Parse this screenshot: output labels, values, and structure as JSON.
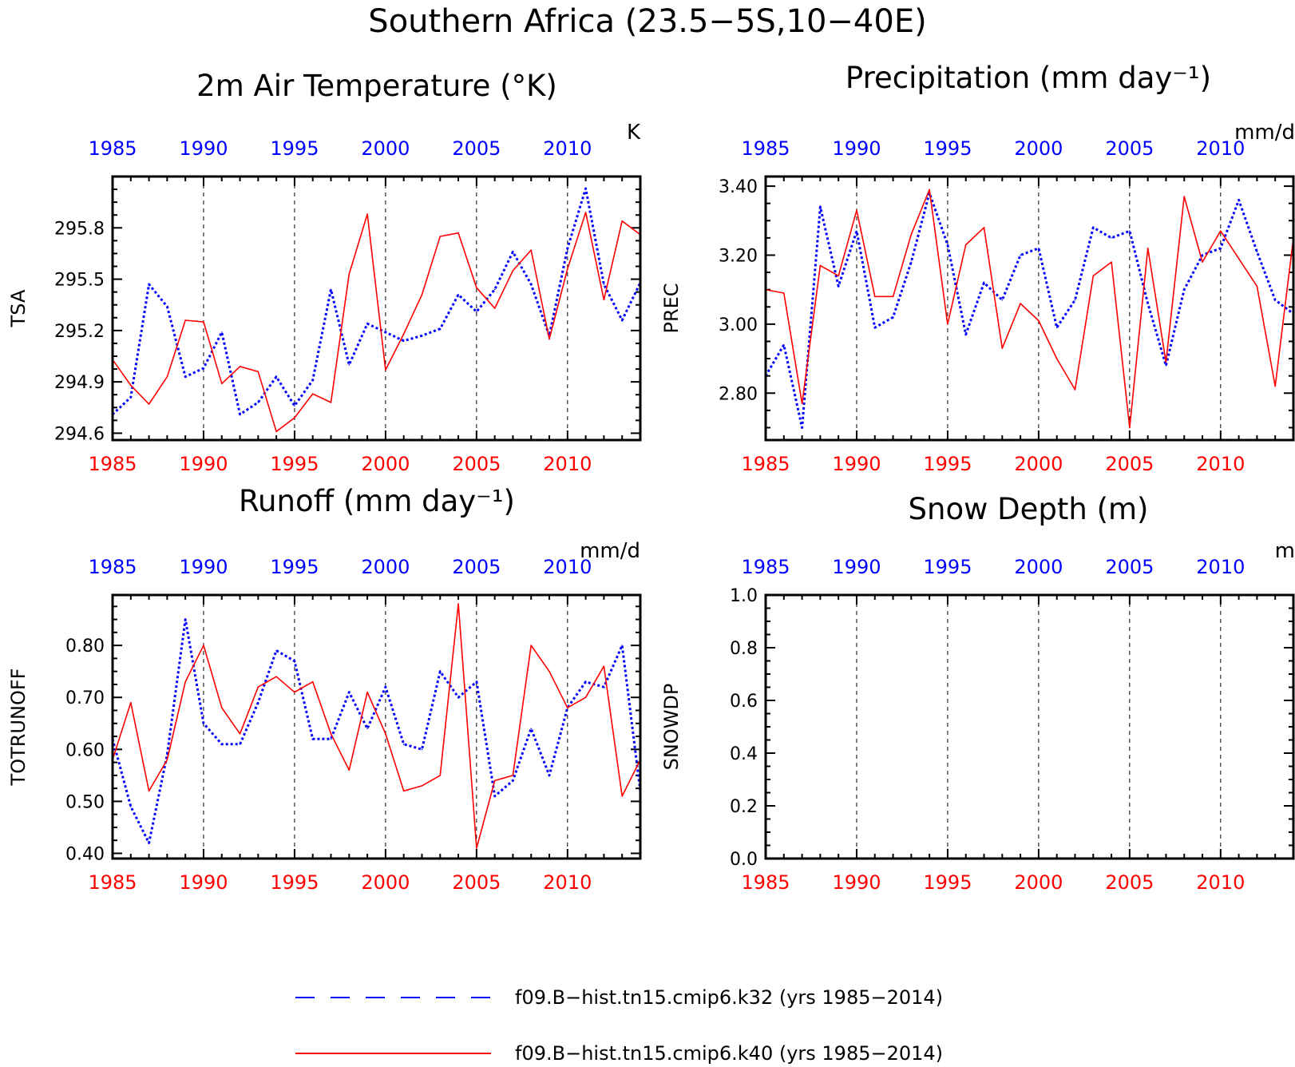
{
  "figure": {
    "title": "Southern Africa (23.5−5S,10−40E)"
  },
  "legend": {
    "entries": [
      {
        "label": "f09.B−hist.tn15.cmip6.k32 (yrs 1985−2014)",
        "color": "#0000ff",
        "style": "dashed"
      },
      {
        "label": "f09.B−hist.tn15.cmip6.k40 (yrs 1985−2014)",
        "color": "#ff0000",
        "style": "solid"
      }
    ]
  },
  "colors": {
    "k32": "#0000ff",
    "k40": "#ff0000",
    "axis": "#000000"
  },
  "chart_data": [
    {
      "type": "line",
      "title": "2m Air Temperature (°K)",
      "units": "K",
      "ylabel": "TSA",
      "xlim": [
        1985,
        2014
      ],
      "ylim": [
        294.56,
        296.1
      ],
      "yticks": [
        294.6,
        294.9,
        295.2,
        295.5,
        295.8
      ],
      "ytick_labels": [
        "294.6",
        "294.9",
        "295.2",
        "295.5",
        "295.8"
      ],
      "xticks": [
        1985,
        1990,
        1995,
        2000,
        2005,
        2010
      ],
      "grid": "vertical dashed at 5-year ticks",
      "x": [
        1985,
        1986,
        1987,
        1988,
        1989,
        1990,
        1991,
        1992,
        1993,
        1994,
        1995,
        1996,
        1997,
        1998,
        1999,
        2000,
        2001,
        2002,
        2003,
        2004,
        2005,
        2006,
        2007,
        2008,
        2009,
        2010,
        2011,
        2012,
        2013,
        2014
      ],
      "series": [
        {
          "name": "f09.B−hist.tn15.cmip6.k32",
          "color": "#0000ff",
          "style": "dotted",
          "values": [
            294.71,
            294.81,
            295.47,
            295.34,
            294.93,
            294.98,
            295.19,
            294.71,
            294.78,
            294.93,
            294.76,
            294.91,
            295.44,
            295.0,
            295.24,
            295.19,
            295.14,
            295.17,
            295.21,
            295.41,
            295.31,
            295.44,
            295.66,
            295.47,
            295.17,
            295.68,
            296.03,
            295.47,
            295.26,
            295.48
          ]
        },
        {
          "name": "f09.B−hist.tn15.cmip6.k40",
          "color": "#ff0000",
          "style": "solid",
          "values": [
            295.03,
            294.88,
            294.77,
            294.93,
            295.26,
            295.25,
            294.89,
            294.99,
            294.96,
            294.61,
            294.69,
            294.83,
            294.78,
            295.53,
            295.88,
            294.97,
            295.18,
            295.41,
            295.75,
            295.77,
            295.45,
            295.33,
            295.55,
            295.67,
            295.15,
            295.56,
            295.89,
            295.38,
            295.84,
            295.76
          ]
        }
      ]
    },
    {
      "type": "line",
      "title": "Precipitation (mm day⁻¹)",
      "units": "mm/d",
      "ylabel": "PREC",
      "xlim": [
        1985,
        2014
      ],
      "ylim": [
        2.664,
        3.428
      ],
      "yticks": [
        2.8,
        3.0,
        3.2,
        3.4
      ],
      "ytick_labels": [
        "2.80",
        "3.00",
        "3.20",
        "3.40"
      ],
      "xticks": [
        1985,
        1990,
        1995,
        2000,
        2005,
        2010
      ],
      "grid": "vertical dashed at 5-year ticks",
      "x": [
        1985,
        1986,
        1987,
        1988,
        1989,
        1990,
        1991,
        1992,
        1993,
        1994,
        1995,
        1996,
        1997,
        1998,
        1999,
        2000,
        2001,
        2002,
        2003,
        2004,
        2005,
        2006,
        2007,
        2008,
        2009,
        2010,
        2011,
        2012,
        2013,
        2014
      ],
      "series": [
        {
          "name": "f09.B−hist.tn15.cmip6.k32",
          "color": "#0000ff",
          "style": "dotted",
          "values": [
            2.85,
            2.94,
            2.7,
            3.34,
            3.11,
            3.27,
            2.99,
            3.02,
            3.18,
            3.38,
            3.23,
            2.97,
            3.12,
            3.07,
            3.2,
            3.22,
            2.99,
            3.07,
            3.28,
            3.25,
            3.27,
            3.06,
            2.88,
            3.1,
            3.2,
            3.22,
            3.36,
            3.21,
            3.07,
            3.03
          ]
        },
        {
          "name": "f09.B−hist.tn15.cmip6.k40",
          "color": "#ff0000",
          "style": "solid",
          "values": [
            3.1,
            3.09,
            2.77,
            3.17,
            3.14,
            3.33,
            3.08,
            3.08,
            3.26,
            3.39,
            3.0,
            3.23,
            3.28,
            2.93,
            3.06,
            3.01,
            2.9,
            2.81,
            3.14,
            3.18,
            2.7,
            3.22,
            2.89,
            3.37,
            3.18,
            3.27,
            3.19,
            3.11,
            2.82,
            3.25
          ]
        }
      ]
    },
    {
      "type": "line",
      "title": "Runoff (mm day⁻¹)",
      "units": "mm/d",
      "ylabel": "TOTRUNOFF",
      "xlim": [
        1985,
        2014
      ],
      "ylim": [
        0.39,
        0.897
      ],
      "yticks": [
        0.4,
        0.5,
        0.6,
        0.7,
        0.8
      ],
      "ytick_labels": [
        "0.40",
        "0.50",
        "0.60",
        "0.70",
        "0.80"
      ],
      "xticks": [
        1985,
        1990,
        1995,
        2000,
        2005,
        2010
      ],
      "grid": "vertical dashed at 5-year ticks",
      "x": [
        1985,
        1986,
        1987,
        1988,
        1989,
        1990,
        1991,
        1992,
        1993,
        1994,
        1995,
        1996,
        1997,
        1998,
        1999,
        2000,
        2001,
        2002,
        2003,
        2004,
        2005,
        2006,
        2007,
        2008,
        2009,
        2010,
        2011,
        2012,
        2013,
        2014
      ],
      "series": [
        {
          "name": "f09.B−hist.tn15.cmip6.k32",
          "color": "#0000ff",
          "style": "dotted",
          "values": [
            0.62,
            0.49,
            0.42,
            0.59,
            0.85,
            0.65,
            0.61,
            0.61,
            0.69,
            0.79,
            0.77,
            0.62,
            0.62,
            0.71,
            0.64,
            0.72,
            0.61,
            0.6,
            0.75,
            0.7,
            0.73,
            0.51,
            0.54,
            0.64,
            0.55,
            0.68,
            0.73,
            0.72,
            0.8,
            0.52
          ]
        },
        {
          "name": "f09.B−hist.tn15.cmip6.k40",
          "color": "#ff0000",
          "style": "solid",
          "values": [
            0.58,
            0.69,
            0.52,
            0.58,
            0.73,
            0.8,
            0.68,
            0.63,
            0.72,
            0.74,
            0.71,
            0.73,
            0.63,
            0.56,
            0.71,
            0.63,
            0.52,
            0.53,
            0.55,
            0.88,
            0.41,
            0.54,
            0.55,
            0.8,
            0.75,
            0.68,
            0.7,
            0.76,
            0.51,
            0.58
          ]
        }
      ]
    },
    {
      "type": "line",
      "title": "Snow Depth (m)",
      "units": "m",
      "ylabel": "SNOWDP",
      "xlim": [
        1985,
        2014
      ],
      "ylim": [
        0.0,
        1.0
      ],
      "yticks": [
        0.0,
        0.2,
        0.4,
        0.6,
        0.8,
        1.0
      ],
      "ytick_labels": [
        "0.0",
        "0.2",
        "0.4",
        "0.6",
        "0.8",
        "1.0"
      ],
      "xticks": [
        1985,
        1990,
        1995,
        2000,
        2005,
        2010
      ],
      "grid": "vertical dashed at 5-year ticks",
      "x": [],
      "series": []
    }
  ]
}
